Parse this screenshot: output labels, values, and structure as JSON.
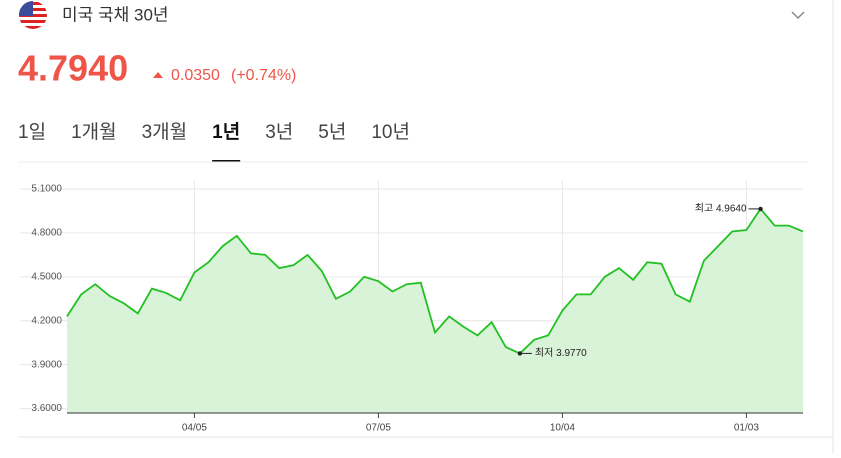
{
  "header": {
    "title": "미국 국채 30년",
    "price": "4.7940",
    "change": "0.0350",
    "change_pct": "(+0.74%)"
  },
  "tabs": [
    "1일",
    "1개월",
    "3개월",
    "1년",
    "3년",
    "5년",
    "10년"
  ],
  "active_tab": 3,
  "chart_data": {
    "type": "area",
    "categories": [
      null,
      null,
      null,
      null,
      null,
      null,
      null,
      null,
      null,
      "04/05",
      null,
      null,
      null,
      null,
      null,
      null,
      null,
      null,
      null,
      null,
      null,
      null,
      "07/05",
      null,
      null,
      null,
      null,
      null,
      null,
      null,
      null,
      null,
      null,
      null,
      null,
      "10/04",
      null,
      null,
      null,
      null,
      null,
      null,
      null,
      null,
      null,
      null,
      null,
      null,
      "01/03",
      null,
      null,
      null,
      null
    ],
    "values": [
      4.23,
      4.38,
      4.45,
      4.37,
      4.32,
      4.25,
      4.42,
      4.39,
      4.34,
      4.53,
      4.6,
      4.71,
      4.78,
      4.66,
      4.65,
      4.56,
      4.58,
      4.65,
      4.54,
      4.35,
      4.4,
      4.5,
      4.47,
      4.4,
      4.45,
      4.46,
      4.12,
      4.23,
      4.16,
      4.1,
      4.19,
      4.02,
      3.977,
      4.07,
      4.1,
      4.27,
      4.38,
      4.38,
      4.5,
      4.56,
      4.48,
      4.6,
      4.59,
      4.38,
      4.33,
      4.61,
      4.71,
      4.81,
      4.82,
      4.964,
      4.85,
      4.85,
      4.81
    ],
    "color": "#22c022",
    "fill": "#d8f3d8",
    "ylim": [
      3.57,
      5.1
    ],
    "yticks": [
      {
        "value": 3.6,
        "label": "3.6000"
      },
      {
        "value": 3.9,
        "label": "3.9000"
      },
      {
        "value": 4.2,
        "label": "4.2000"
      },
      {
        "value": 4.5,
        "label": "4.5000"
      },
      {
        "value": 4.8,
        "label": "4.8000"
      },
      {
        "value": 5.1,
        "label": "5.1000"
      }
    ],
    "grid": true,
    "annotations": {
      "high": "최고 4.9640",
      "low": "최저 3.9770"
    }
  }
}
